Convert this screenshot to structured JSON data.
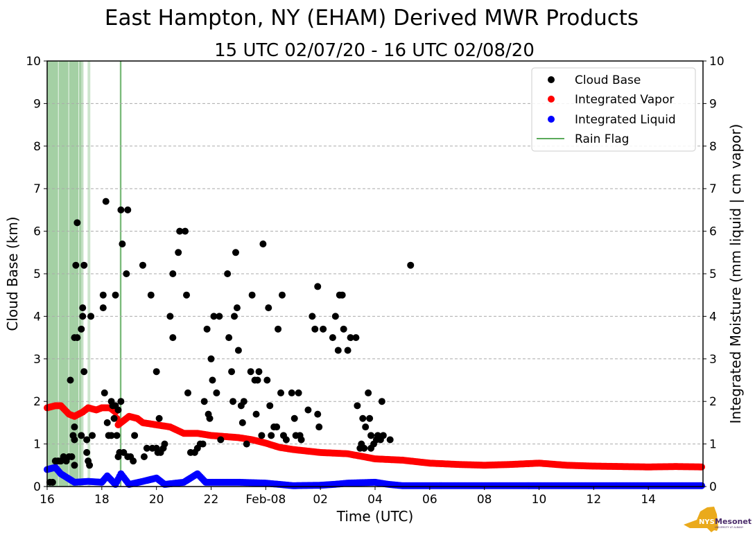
{
  "chart_data": {
    "type": "scatter",
    "title": "East Hampton, NY (EHAM) Derived MWR Products",
    "subtitle": "15 UTC 02/07/20 - 16 UTC 02/08/20",
    "xlabel": "Time (UTC)",
    "ylabel": "Cloud Base (km)",
    "ylabel_right": "Integrated Moisture (mm liquid | cm vapor)",
    "x_units": "hours since 16 UTC 02/07/20",
    "xlim": [
      0,
      24
    ],
    "ylim": [
      0,
      10
    ],
    "ylim_right": [
      0,
      10
    ],
    "grid": "horizontal dashed",
    "legend_position": "top-right",
    "x_ticks": [
      {
        "value": 0,
        "label": "16"
      },
      {
        "value": 2,
        "label": "18"
      },
      {
        "value": 4,
        "label": "20"
      },
      {
        "value": 6,
        "label": "22"
      },
      {
        "value": 8,
        "label": "Feb-08"
      },
      {
        "value": 10,
        "label": "02"
      },
      {
        "value": 12,
        "label": "04"
      },
      {
        "value": 14,
        "label": "06"
      },
      {
        "value": 16,
        "label": "08"
      },
      {
        "value": 18,
        "label": "10"
      },
      {
        "value": 20,
        "label": "12"
      },
      {
        "value": 22,
        "label": "14"
      }
    ],
    "y_ticks": [
      "0",
      "1",
      "2",
      "3",
      "4",
      "5",
      "6",
      "7",
      "8",
      "9",
      "10"
    ],
    "legend": [
      {
        "label": "Cloud Base",
        "color": "#000000",
        "kind": "dot"
      },
      {
        "label": "Integrated Vapor",
        "color": "#ff0000",
        "kind": "dot"
      },
      {
        "label": "Integrated Liquid",
        "color": "#0000ff",
        "kind": "dot"
      },
      {
        "label": "Rain Flag",
        "color": "#5aaa5a",
        "kind": "line"
      }
    ],
    "rain_flag_spans": [
      [
        0.0,
        0.4,
        0.55
      ],
      [
        0.42,
        0.78,
        0.55
      ],
      [
        0.8,
        1.15,
        0.55
      ],
      [
        1.17,
        1.25,
        0.55
      ],
      [
        1.25,
        1.33,
        0.35
      ],
      [
        1.48,
        1.58,
        0.3
      ],
      [
        2.66,
        2.72,
        0.8
      ]
    ],
    "cloud_base": [
      [
        0.1,
        0.1
      ],
      [
        0.2,
        0.1
      ],
      [
        0.3,
        0.6
      ],
      [
        0.4,
        0.6
      ],
      [
        0.5,
        0.6
      ],
      [
        0.6,
        0.7
      ],
      [
        0.7,
        0.6
      ],
      [
        0.8,
        0.7
      ],
      [
        0.9,
        0.7
      ],
      [
        1.0,
        0.5
      ],
      [
        0.85,
        2.5
      ],
      [
        0.95,
        1.2
      ],
      [
        1.0,
        1.1
      ],
      [
        1.0,
        1.4
      ],
      [
        1.05,
        5.2
      ],
      [
        1.0,
        3.5
      ],
      [
        1.1,
        3.5
      ],
      [
        1.1,
        6.2
      ],
      [
        1.25,
        3.7
      ],
      [
        1.3,
        4.2
      ],
      [
        1.3,
        4.0
      ],
      [
        1.25,
        1.2
      ],
      [
        1.35,
        5.2
      ],
      [
        1.35,
        2.7
      ],
      [
        1.45,
        1.1
      ],
      [
        1.45,
        0.8
      ],
      [
        1.5,
        0.6
      ],
      [
        1.55,
        0.5
      ],
      [
        1.6,
        4.0
      ],
      [
        1.65,
        1.2
      ],
      [
        2.05,
        4.5
      ],
      [
        2.05,
        4.2
      ],
      [
        2.1,
        2.2
      ],
      [
        2.15,
        6.7
      ],
      [
        2.2,
        1.5
      ],
      [
        2.25,
        1.2
      ],
      [
        2.35,
        1.2
      ],
      [
        2.35,
        2.0
      ],
      [
        2.4,
        1.9
      ],
      [
        2.45,
        1.6
      ],
      [
        2.5,
        4.5
      ],
      [
        2.5,
        1.9
      ],
      [
        2.55,
        1.2
      ],
      [
        2.6,
        0.7
      ],
      [
        2.6,
        1.8
      ],
      [
        2.65,
        0.8
      ],
      [
        2.7,
        6.5
      ],
      [
        2.7,
        2.0
      ],
      [
        2.75,
        5.7
      ],
      [
        2.8,
        0.8
      ],
      [
        2.9,
        5.0
      ],
      [
        2.95,
        6.5
      ],
      [
        2.95,
        0.7
      ],
      [
        3.05,
        0.7
      ],
      [
        3.15,
        0.6
      ],
      [
        3.2,
        1.2
      ],
      [
        3.5,
        5.2
      ],
      [
        3.55,
        0.7
      ],
      [
        3.65,
        0.9
      ],
      [
        3.8,
        4.5
      ],
      [
        3.85,
        0.9
      ],
      [
        4.0,
        2.7
      ],
      [
        4.0,
        0.9
      ],
      [
        4.05,
        0.8
      ],
      [
        4.1,
        1.6
      ],
      [
        4.15,
        0.8
      ],
      [
        4.25,
        0.9
      ],
      [
        4.3,
        1.0
      ],
      [
        4.5,
        4.0
      ],
      [
        4.6,
        3.5
      ],
      [
        4.6,
        5.0
      ],
      [
        4.8,
        5.5
      ],
      [
        4.85,
        6.0
      ],
      [
        5.05,
        6.0
      ],
      [
        5.1,
        4.5
      ],
      [
        5.15,
        2.2
      ],
      [
        5.25,
        0.8
      ],
      [
        5.4,
        0.8
      ],
      [
        5.5,
        0.9
      ],
      [
        5.6,
        1.0
      ],
      [
        5.7,
        1.0
      ],
      [
        5.75,
        2.0
      ],
      [
        5.85,
        3.7
      ],
      [
        5.9,
        1.7
      ],
      [
        5.95,
        1.6
      ],
      [
        6.0,
        3.0
      ],
      [
        6.05,
        2.5
      ],
      [
        6.1,
        4.0
      ],
      [
        6.2,
        2.2
      ],
      [
        6.3,
        4.0
      ],
      [
        6.35,
        1.1
      ],
      [
        6.6,
        5.0
      ],
      [
        6.65,
        3.5
      ],
      [
        6.75,
        2.7
      ],
      [
        6.8,
        2.0
      ],
      [
        6.85,
        4.0
      ],
      [
        6.9,
        5.5
      ],
      [
        6.95,
        4.2
      ],
      [
        7.0,
        3.2
      ],
      [
        7.1,
        1.9
      ],
      [
        7.15,
        1.5
      ],
      [
        7.2,
        2.0
      ],
      [
        7.3,
        1.0
      ],
      [
        7.45,
        2.7
      ],
      [
        7.5,
        4.5
      ],
      [
        7.6,
        2.5
      ],
      [
        7.65,
        1.7
      ],
      [
        7.7,
        2.5
      ],
      [
        7.75,
        2.7
      ],
      [
        7.85,
        1.2
      ],
      [
        7.9,
        5.7
      ],
      [
        8.05,
        2.5
      ],
      [
        8.1,
        4.2
      ],
      [
        8.15,
        1.9
      ],
      [
        8.2,
        1.2
      ],
      [
        8.3,
        1.4
      ],
      [
        8.4,
        1.4
      ],
      [
        8.45,
        3.7
      ],
      [
        8.55,
        2.2
      ],
      [
        8.6,
        4.5
      ],
      [
        8.65,
        1.2
      ],
      [
        8.75,
        1.1
      ],
      [
        8.95,
        2.2
      ],
      [
        9.05,
        1.6
      ],
      [
        9.1,
        1.2
      ],
      [
        9.2,
        2.2
      ],
      [
        9.25,
        1.2
      ],
      [
        9.3,
        1.1
      ],
      [
        9.55,
        1.8
      ],
      [
        9.7,
        4.0
      ],
      [
        9.8,
        3.7
      ],
      [
        9.9,
        1.7
      ],
      [
        9.9,
        4.7
      ],
      [
        9.95,
        1.4
      ],
      [
        10.1,
        3.7
      ],
      [
        10.45,
        3.5
      ],
      [
        10.55,
        4.0
      ],
      [
        10.65,
        3.2
      ],
      [
        10.7,
        4.5
      ],
      [
        10.8,
        4.5
      ],
      [
        10.85,
        3.7
      ],
      [
        11.0,
        3.2
      ],
      [
        11.1,
        3.5
      ],
      [
        11.3,
        3.5
      ],
      [
        11.35,
        1.9
      ],
      [
        11.45,
        0.9
      ],
      [
        11.5,
        1.0
      ],
      [
        11.55,
        1.6
      ],
      [
        11.6,
        0.9
      ],
      [
        11.65,
        1.4
      ],
      [
        11.75,
        2.2
      ],
      [
        11.8,
        1.6
      ],
      [
        11.85,
        1.2
      ],
      [
        11.85,
        0.9
      ],
      [
        11.95,
        1.0
      ],
      [
        12.05,
        1.1
      ],
      [
        12.1,
        1.2
      ],
      [
        12.2,
        1.1
      ],
      [
        12.25,
        2.0
      ],
      [
        12.3,
        1.2
      ],
      [
        12.55,
        1.1
      ],
      [
        13.3,
        5.2
      ]
    ],
    "integrated_vapor": [
      [
        0,
        1.85
      ],
      [
        0.3,
        1.9
      ],
      [
        0.5,
        1.9
      ],
      [
        0.8,
        1.7
      ],
      [
        1.0,
        1.65
      ],
      [
        1.3,
        1.75
      ],
      [
        1.5,
        1.85
      ],
      [
        1.8,
        1.8
      ],
      [
        2.0,
        1.85
      ],
      [
        2.3,
        1.85
      ],
      [
        2.5,
        1.75
      ],
      [
        2.6,
        1.45
      ],
      [
        2.8,
        1.55
      ],
      [
        3.0,
        1.65
      ],
      [
        3.3,
        1.6
      ],
      [
        3.5,
        1.5
      ],
      [
        4.0,
        1.45
      ],
      [
        4.5,
        1.4
      ],
      [
        5.0,
        1.25
      ],
      [
        5.5,
        1.25
      ],
      [
        6.0,
        1.2
      ],
      [
        7.0,
        1.15
      ],
      [
        7.5,
        1.1
      ],
      [
        8.0,
        1.02
      ],
      [
        8.5,
        0.92
      ],
      [
        9.0,
        0.87
      ],
      [
        10.0,
        0.8
      ],
      [
        11.0,
        0.77
      ],
      [
        12.0,
        0.65
      ],
      [
        13.0,
        0.62
      ],
      [
        14.0,
        0.55
      ],
      [
        15.0,
        0.52
      ],
      [
        16.0,
        0.5
      ],
      [
        17.0,
        0.52
      ],
      [
        18.0,
        0.55
      ],
      [
        19.0,
        0.5
      ],
      [
        20.0,
        0.48
      ],
      [
        21.0,
        0.47
      ],
      [
        22.0,
        0.46
      ],
      [
        23.0,
        0.47
      ],
      [
        24.0,
        0.46
      ]
    ],
    "integrated_liquid": [
      [
        0,
        0.4
      ],
      [
        0.3,
        0.45
      ],
      [
        0.5,
        0.3
      ],
      [
        1.0,
        0.1
      ],
      [
        1.5,
        0.12
      ],
      [
        2.0,
        0.1
      ],
      [
        2.2,
        0.25
      ],
      [
        2.5,
        0.05
      ],
      [
        2.7,
        0.3
      ],
      [
        3.0,
        0.05
      ],
      [
        3.5,
        0.12
      ],
      [
        4.0,
        0.2
      ],
      [
        4.3,
        0.05
      ],
      [
        5.0,
        0.1
      ],
      [
        5.5,
        0.3
      ],
      [
        5.8,
        0.1
      ],
      [
        7.0,
        0.1
      ],
      [
        8.0,
        0.08
      ],
      [
        8.5,
        0.05
      ],
      [
        9.0,
        0.02
      ],
      [
        10.0,
        0.03
      ],
      [
        10.5,
        0.05
      ],
      [
        11.0,
        0.08
      ],
      [
        12.0,
        0.1
      ],
      [
        12.5,
        0.05
      ],
      [
        13.0,
        0.02
      ],
      [
        24.0,
        0.02
      ]
    ]
  },
  "logo": {
    "text": "NYS Mesonet",
    "subtext": "UNIVERSITY AT ALBANY"
  }
}
